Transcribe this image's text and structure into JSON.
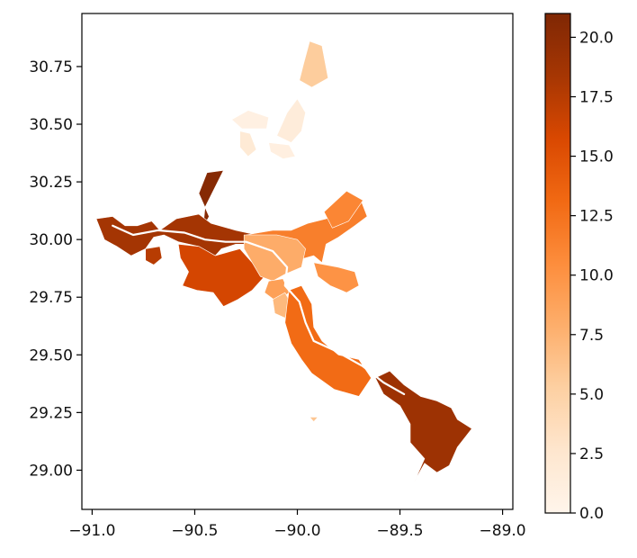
{
  "chart_data": {
    "type": "choropleth",
    "xlim": [
      -91.05,
      -88.95
    ],
    "ylim": [
      28.83,
      30.98
    ],
    "x_ticks": [
      -91.0,
      -90.5,
      -90.0,
      -89.5,
      -89.0
    ],
    "x_tick_labels": [
      "−91.0",
      "−90.5",
      "−90.0",
      "−89.5",
      "−89.0"
    ],
    "y_ticks": [
      29.0,
      29.25,
      29.5,
      29.75,
      30.0,
      30.25,
      30.5,
      30.75
    ],
    "y_tick_labels": [
      "29.00",
      "29.25",
      "29.50",
      "29.75",
      "30.00",
      "30.25",
      "30.50",
      "30.75"
    ],
    "colorbar": {
      "colormap": "Oranges",
      "vmin": 0.0,
      "vmax": 21.0,
      "ticks": [
        0.0,
        2.5,
        5.0,
        7.5,
        10.0,
        12.5,
        15.0,
        17.5,
        20.0
      ],
      "tick_labels": [
        "0.0",
        "2.5",
        "5.0",
        "7.5",
        "10.0",
        "12.5",
        "15.0",
        "17.5",
        "20.0"
      ],
      "color_stops": [
        "#fff5eb",
        "#fee6ce",
        "#fdd0a2",
        "#fdae6b",
        "#fd8d3c",
        "#f16913",
        "#d94801",
        "#a63603",
        "#7f2704"
      ]
    },
    "grid": false,
    "regions": [
      {
        "value": 5.5,
        "points": [
          [
            -89.97,
            30.76
          ],
          [
            -89.94,
            30.86
          ],
          [
            -89.88,
            30.84
          ],
          [
            -89.85,
            30.7
          ],
          [
            -89.93,
            30.66
          ],
          [
            -89.99,
            30.69
          ]
        ]
      },
      {
        "value": 1.5,
        "points": [
          [
            -90.1,
            30.45
          ],
          [
            -90.05,
            30.55
          ],
          [
            -90.0,
            30.61
          ],
          [
            -89.96,
            30.55
          ],
          [
            -89.98,
            30.47
          ],
          [
            -90.03,
            30.42
          ]
        ]
      },
      {
        "value": 0.8,
        "points": [
          [
            -90.32,
            30.52
          ],
          [
            -90.24,
            30.56
          ],
          [
            -90.14,
            30.53
          ],
          [
            -90.15,
            30.48
          ],
          [
            -90.27,
            30.48
          ]
        ]
      },
      {
        "value": 2.0,
        "points": [
          [
            -90.28,
            30.47
          ],
          [
            -90.23,
            30.46
          ],
          [
            -90.2,
            30.39
          ],
          [
            -90.24,
            30.36
          ],
          [
            -90.28,
            30.4
          ]
        ]
      },
      {
        "value": 1.0,
        "points": [
          [
            -90.14,
            30.42
          ],
          [
            -90.04,
            30.41
          ],
          [
            -90.01,
            30.36
          ],
          [
            -90.07,
            30.35
          ],
          [
            -90.13,
            30.38
          ]
        ]
      },
      {
        "value": 20.5,
        "points": [
          [
            -90.44,
            30.29
          ],
          [
            -90.36,
            30.3
          ],
          [
            -90.45,
            30.14
          ],
          [
            -90.46,
            30.05
          ],
          [
            -90.43,
            30.1
          ],
          [
            -90.48,
            30.2
          ]
        ]
      },
      {
        "value": 18.5,
        "points": [
          [
            -90.98,
            30.09
          ],
          [
            -90.9,
            30.1
          ],
          [
            -90.84,
            30.06
          ],
          [
            -90.78,
            30.06
          ],
          [
            -90.71,
            30.08
          ],
          [
            -90.67,
            30.04
          ],
          [
            -90.59,
            30.09
          ],
          [
            -90.48,
            30.11
          ],
          [
            -90.42,
            30.07
          ],
          [
            -90.3,
            30.04
          ],
          [
            -90.2,
            30.02
          ],
          [
            -90.22,
            29.98
          ],
          [
            -90.3,
            29.98
          ],
          [
            -90.37,
            29.96
          ],
          [
            -90.4,
            29.93
          ],
          [
            -90.48,
            29.97
          ],
          [
            -90.58,
            29.99
          ],
          [
            -90.65,
            30.02
          ],
          [
            -90.7,
            30.01
          ],
          [
            -90.74,
            29.96
          ],
          [
            -90.81,
            29.93
          ],
          [
            -90.88,
            29.97
          ],
          [
            -90.94,
            30.0
          ]
        ]
      },
      {
        "value": 17.5,
        "points": [
          [
            -90.74,
            29.96
          ],
          [
            -90.67,
            29.97
          ],
          [
            -90.66,
            29.92
          ],
          [
            -90.7,
            29.89
          ],
          [
            -90.74,
            29.91
          ]
        ]
      },
      {
        "value": 16.0,
        "points": [
          [
            -90.58,
            29.98
          ],
          [
            -90.48,
            29.97
          ],
          [
            -90.4,
            29.93
          ],
          [
            -90.28,
            29.96
          ],
          [
            -90.22,
            29.9
          ],
          [
            -90.16,
            29.84
          ],
          [
            -90.22,
            29.78
          ],
          [
            -90.29,
            29.74
          ],
          [
            -90.36,
            29.71
          ],
          [
            -90.41,
            29.77
          ],
          [
            -90.49,
            29.78
          ],
          [
            -90.56,
            29.8
          ],
          [
            -90.53,
            29.86
          ],
          [
            -90.57,
            29.92
          ]
        ]
      },
      {
        "value": 11.5,
        "points": [
          [
            -90.25,
            30.02
          ],
          [
            -90.12,
            30.04
          ],
          [
            -90.03,
            30.04
          ],
          [
            -89.95,
            30.07
          ],
          [
            -89.86,
            30.09
          ],
          [
            -89.76,
            30.12
          ],
          [
            -89.69,
            30.17
          ],
          [
            -89.66,
            30.1
          ],
          [
            -89.72,
            30.06
          ],
          [
            -89.8,
            30.01
          ],
          [
            -89.86,
            29.98
          ],
          [
            -89.88,
            29.9
          ],
          [
            -89.92,
            29.93
          ],
          [
            -90.0,
            29.91
          ],
          [
            -90.06,
            29.94
          ],
          [
            -90.14,
            29.97
          ],
          [
            -90.2,
            29.98
          ],
          [
            -90.26,
            29.99
          ]
        ]
      },
      {
        "value": 11.0,
        "points": [
          [
            -89.87,
            30.12
          ],
          [
            -89.76,
            30.21
          ],
          [
            -89.68,
            30.17
          ],
          [
            -89.75,
            30.08
          ],
          [
            -89.83,
            30.05
          ]
        ]
      },
      {
        "value": 8.0,
        "points": [
          [
            -90.26,
            30.02
          ],
          [
            -90.1,
            30.02
          ],
          [
            -90.0,
            30.0
          ],
          [
            -89.96,
            29.96
          ],
          [
            -89.98,
            29.88
          ],
          [
            -90.06,
            29.85
          ],
          [
            -90.12,
            29.82
          ],
          [
            -90.18,
            29.84
          ],
          [
            -90.22,
            29.9
          ],
          [
            -90.26,
            29.96
          ]
        ]
      },
      {
        "value": 9.0,
        "points": [
          [
            -90.07,
            29.83
          ],
          [
            -90.04,
            29.77
          ],
          [
            -90.1,
            29.73
          ],
          [
            -90.16,
            29.77
          ],
          [
            -90.14,
            29.82
          ]
        ]
      },
      {
        "value": 7.0,
        "points": [
          [
            -90.06,
            29.77
          ],
          [
            -90.03,
            29.72
          ],
          [
            -90.06,
            29.66
          ],
          [
            -90.11,
            29.68
          ],
          [
            -90.12,
            29.74
          ]
        ]
      },
      {
        "value": 10.0,
        "points": [
          [
            -89.92,
            29.9
          ],
          [
            -89.8,
            29.88
          ],
          [
            -89.72,
            29.86
          ],
          [
            -89.7,
            29.8
          ],
          [
            -89.76,
            29.77
          ],
          [
            -89.84,
            29.8
          ],
          [
            -89.9,
            29.84
          ]
        ]
      },
      {
        "value": 13.0,
        "points": [
          [
            -90.04,
            29.78
          ],
          [
            -89.98,
            29.8
          ],
          [
            -89.93,
            29.72
          ],
          [
            -89.92,
            29.62
          ],
          [
            -89.88,
            29.56
          ],
          [
            -89.8,
            29.5
          ],
          [
            -89.7,
            29.48
          ],
          [
            -89.64,
            29.4
          ],
          [
            -89.7,
            29.32
          ],
          [
            -89.82,
            29.35
          ],
          [
            -89.93,
            29.42
          ],
          [
            -89.98,
            29.48
          ],
          [
            -90.03,
            29.55
          ],
          [
            -90.06,
            29.64
          ],
          [
            -90.05,
            29.72
          ]
        ]
      },
      {
        "value": 19.0,
        "points": [
          [
            -89.55,
            29.43
          ],
          [
            -89.48,
            29.37
          ],
          [
            -89.4,
            29.32
          ],
          [
            -89.32,
            29.3
          ],
          [
            -89.25,
            29.27
          ],
          [
            -89.22,
            29.22
          ],
          [
            -89.15,
            29.18
          ],
          [
            -89.22,
            29.1
          ],
          [
            -89.26,
            29.02
          ],
          [
            -89.32,
            28.99
          ],
          [
            -89.38,
            29.03
          ],
          [
            -89.43,
            28.95
          ],
          [
            -89.38,
            29.05
          ],
          [
            -89.45,
            29.12
          ],
          [
            -89.45,
            29.2
          ],
          [
            -89.5,
            29.28
          ],
          [
            -89.58,
            29.33
          ],
          [
            -89.62,
            29.4
          ]
        ]
      },
      {
        "value": 6.0,
        "points": [
          [
            -89.94,
            29.23
          ],
          [
            -89.9,
            29.23
          ],
          [
            -89.92,
            29.21
          ]
        ]
      }
    ]
  }
}
